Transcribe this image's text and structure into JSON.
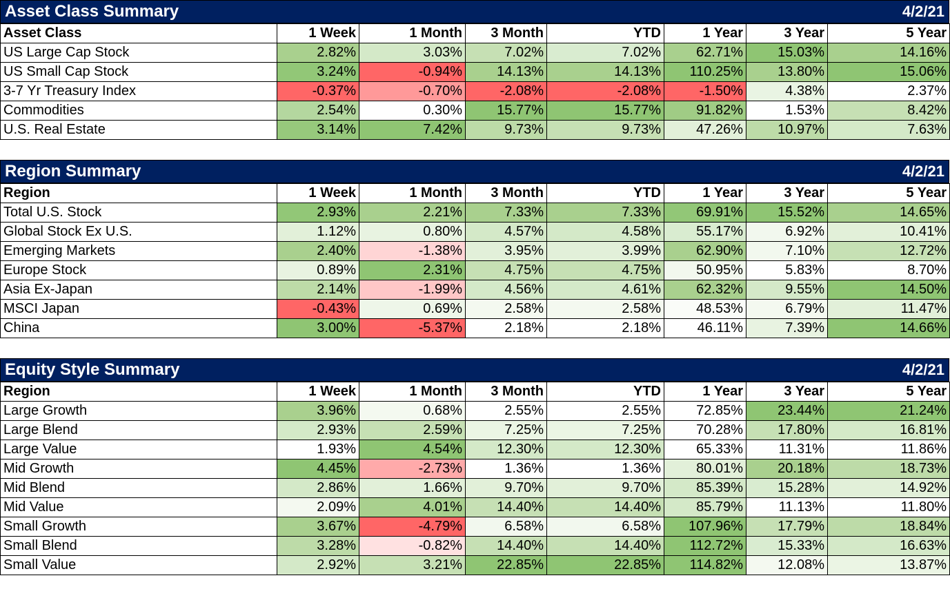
{
  "sections": [
    {
      "title": "Asset Class Summary",
      "date": "4/2/21",
      "headers": [
        "Asset Class",
        "1 Week",
        "1 Month",
        "3 Month",
        "YTD",
        "1 Year",
        "3 Year",
        "5 Year"
      ],
      "rows": [
        {
          "label": "US Large Cap Stock",
          "values": [
            "2.82%",
            "3.03%",
            "7.02%",
            "7.02%",
            "62.71%",
            "15.03%",
            "14.16%"
          ],
          "colors": [
            "#a9d08e",
            "#d4e9c8",
            "#c6e0b4",
            "#d9ecd0",
            "#a9d08e",
            "#8fc573",
            "#a9d08e"
          ]
        },
        {
          "label": "US Small Cap Stock",
          "values": [
            "3.24%",
            "-0.94%",
            "14.13%",
            "14.13%",
            "110.25%",
            "13.80%",
            "15.06%"
          ],
          "colors": [
            "#92c777",
            "#ff6666",
            "#a9d08e",
            "#a9d08e",
            "#8fc573",
            "#a9d08e",
            "#8fc573"
          ]
        },
        {
          "label": "3-7 Yr Treasury Index",
          "values": [
            "-0.37%",
            "-0.70%",
            "-2.08%",
            "-2.08%",
            "-1.50%",
            "4.38%",
            "2.37%"
          ],
          "colors": [
            "#ff6666",
            "#ff9999",
            "#ff6666",
            "#ff6666",
            "#ff6666",
            "#e9f4e3",
            "#ffffff"
          ]
        },
        {
          "label": "Commodities",
          "values": [
            "2.54%",
            "0.30%",
            "15.77%",
            "15.77%",
            "91.82%",
            "1.53%",
            "8.42%"
          ],
          "colors": [
            "#b4d79f",
            "#ffffff",
            "#8fc573",
            "#8fc573",
            "#a0cc85",
            "#ffffff",
            "#c6e0b4"
          ]
        },
        {
          "label": "U.S. Real Estate",
          "values": [
            "3.14%",
            "7.42%",
            "9.73%",
            "9.73%",
            "47.26%",
            "10.97%",
            "7.63%"
          ],
          "colors": [
            "#97c97c",
            "#8fc573",
            "#bddba8",
            "#c6e0b4",
            "#e2f0d9",
            "#bddba8",
            "#d4e9c8"
          ]
        }
      ]
    },
    {
      "title": "Region Summary",
      "date": "4/2/21",
      "headers": [
        "Region",
        "1 Week",
        "1 Month",
        "3 Month",
        "YTD",
        "1 Year",
        "3 Year",
        "5 Year"
      ],
      "rows": [
        {
          "label": "Total U.S. Stock",
          "values": [
            "2.93%",
            "2.21%",
            "7.33%",
            "7.33%",
            "69.91%",
            "15.52%",
            "14.65%"
          ],
          "colors": [
            "#92c777",
            "#a9d08e",
            "#a9d08e",
            "#a9d08e",
            "#92c777",
            "#8fc573",
            "#a9d08e"
          ]
        },
        {
          "label": "Global Stock Ex U.S.",
          "values": [
            "1.12%",
            "0.80%",
            "4.57%",
            "4.58%",
            "55.17%",
            "6.92%",
            "10.41%"
          ],
          "colors": [
            "#e2f0d9",
            "#e8f3e1",
            "#d4e9c8",
            "#d4e9c8",
            "#d9ecd0",
            "#f2f8ee",
            "#e2f0d9"
          ]
        },
        {
          "label": "Emerging Markets",
          "values": [
            "2.40%",
            "-1.38%",
            "3.95%",
            "3.99%",
            "62.90%",
            "7.10%",
            "12.72%"
          ],
          "colors": [
            "#a9d08e",
            "#ffd5d5",
            "#e2f0d9",
            "#e2f0d9",
            "#a9d08e",
            "#f2f8ee",
            "#c6e0b4"
          ]
        },
        {
          "label": "Europe Stock",
          "values": [
            "0.89%",
            "2.31%",
            "4.75%",
            "4.75%",
            "50.95%",
            "5.83%",
            "8.70%"
          ],
          "colors": [
            "#e8f3e1",
            "#8fc573",
            "#c6e0b4",
            "#c6e0b4",
            "#f2f8ee",
            "#ffffff",
            "#ffffff"
          ]
        },
        {
          "label": "Asia Ex-Japan",
          "values": [
            "2.14%",
            "-1.99%",
            "4.56%",
            "4.61%",
            "62.32%",
            "9.55%",
            "14.50%"
          ],
          "colors": [
            "#bddba8",
            "#ffc7c7",
            "#d4e9c8",
            "#d4e9c8",
            "#a9d08e",
            "#d4e9c8",
            "#8fc573"
          ]
        },
        {
          "label": "MSCI Japan",
          "values": [
            "-0.43%",
            "0.69%",
            "2.58%",
            "2.58%",
            "48.53%",
            "6.79%",
            "11.47%"
          ],
          "colors": [
            "#ff6666",
            "#eef6e9",
            "#f4f9f0",
            "#f4f9f0",
            "#fafcf8",
            "#f4f9f0",
            "#e2f0d9"
          ]
        },
        {
          "label": "China",
          "values": [
            "3.00%",
            "-5.37%",
            "2.18%",
            "2.18%",
            "46.11%",
            "7.39%",
            "14.66%"
          ],
          "colors": [
            "#8fc573",
            "#ff6666",
            "#ffffff",
            "#ffffff",
            "#ffffff",
            "#e8f3e1",
            "#8fc573"
          ]
        }
      ]
    },
    {
      "title": "Equity Style Summary",
      "date": "4/2/21",
      "headers": [
        "Region",
        "1 Week",
        "1 Month",
        "3 Month",
        "YTD",
        "1 Year",
        "3 Year",
        "5 Year"
      ],
      "rows": [
        {
          "label": "Large Growth",
          "values": [
            "3.96%",
            "0.68%",
            "2.55%",
            "2.55%",
            "72.85%",
            "23.44%",
            "21.24%"
          ],
          "colors": [
            "#a9d08e",
            "#f4f9f0",
            "#ffffff",
            "#ffffff",
            "#ffffff",
            "#8fc573",
            "#8fc573"
          ]
        },
        {
          "label": "Large Blend",
          "values": [
            "2.93%",
            "2.59%",
            "7.25%",
            "7.25%",
            "70.28%",
            "17.80%",
            "16.81%"
          ],
          "colors": [
            "#d4e9c8",
            "#c6e0b4",
            "#ebf5e4",
            "#ebf5e4",
            "#ffffff",
            "#c6e0b4",
            "#d4e9c8"
          ]
        },
        {
          "label": "Large Value",
          "values": [
            "1.93%",
            "4.54%",
            "12.30%",
            "12.30%",
            "65.33%",
            "11.31%",
            "11.86%"
          ],
          "colors": [
            "#ffffff",
            "#8fc573",
            "#d4e9c8",
            "#d4e9c8",
            "#ffffff",
            "#ffffff",
            "#ffffff"
          ]
        },
        {
          "label": "Mid Growth",
          "values": [
            "4.45%",
            "-2.73%",
            "1.36%",
            "1.36%",
            "80.01%",
            "20.18%",
            "18.73%"
          ],
          "colors": [
            "#8fc573",
            "#ffaaaa",
            "#ffffff",
            "#ffffff",
            "#e2f0d9",
            "#a9d08e",
            "#bddba8"
          ]
        },
        {
          "label": "Mid Blend",
          "values": [
            "2.86%",
            "1.66%",
            "9.70%",
            "9.70%",
            "85.39%",
            "15.28%",
            "14.92%"
          ],
          "colors": [
            "#d4e9c8",
            "#e2f0d9",
            "#e2f0d9",
            "#e2f0d9",
            "#d4e9c8",
            "#d9ecd0",
            "#e2f0d9"
          ]
        },
        {
          "label": "Mid Value",
          "values": [
            "2.09%",
            "4.01%",
            "14.40%",
            "14.40%",
            "85.79%",
            "11.13%",
            "11.80%"
          ],
          "colors": [
            "#f4f9f0",
            "#a9d08e",
            "#c6e0b4",
            "#c6e0b4",
            "#d4e9c8",
            "#ffffff",
            "#ffffff"
          ]
        },
        {
          "label": "Small Growth",
          "values": [
            "3.67%",
            "-4.79%",
            "6.58%",
            "6.58%",
            "107.96%",
            "17.79%",
            "18.84%"
          ],
          "colors": [
            "#a9d08e",
            "#ff6666",
            "#f2f8ee",
            "#f2f8ee",
            "#8fc573",
            "#c6e0b4",
            "#bddba8"
          ]
        },
        {
          "label": "Small Blend",
          "values": [
            "3.28%",
            "-0.82%",
            "14.40%",
            "14.40%",
            "112.72%",
            "15.33%",
            "16.63%"
          ],
          "colors": [
            "#bddba8",
            "#ffe1e1",
            "#c6e0b4",
            "#c6e0b4",
            "#8fc573",
            "#d9ecd0",
            "#d4e9c8"
          ]
        },
        {
          "label": "Small Value",
          "values": [
            "2.92%",
            "3.21%",
            "22.85%",
            "22.85%",
            "114.82%",
            "12.08%",
            "13.87%"
          ],
          "colors": [
            "#d4e9c8",
            "#c6e0b4",
            "#8fc573",
            "#8fc573",
            "#8fc573",
            "#f4f9f0",
            "#ebf5e4"
          ]
        }
      ]
    }
  ]
}
